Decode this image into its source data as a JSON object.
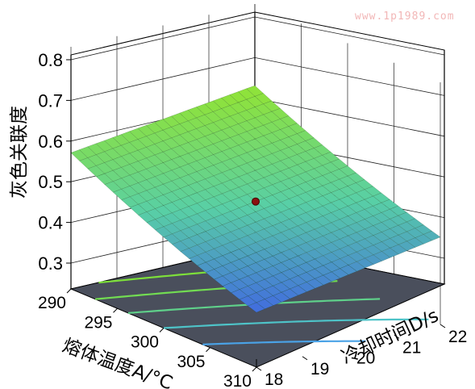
{
  "watermark": "www.1p1989.com",
  "chart_data": {
    "type": "surface3d",
    "zlabel": "灰色关联度",
    "xlabel": "熔体温度A/°C",
    "ylabel": "冷却时间D/s",
    "z_ticks": [
      "0.3",
      "0.4",
      "0.5",
      "0.6",
      "0.7",
      "0.8"
    ],
    "a_ticks": [
      "290",
      "295",
      "300",
      "305",
      "310"
    ],
    "d_ticks": [
      "18",
      "19",
      "20",
      "21",
      "22"
    ],
    "zlim": [
      0.3,
      0.8
    ],
    "alim": [
      290,
      310
    ],
    "dlim": [
      18,
      22
    ],
    "surface_corners": {
      "A290_D18": 0.56,
      "A290_D22": 0.62,
      "A310_D18": 0.36,
      "A310_D22": 0.44
    },
    "center_point": {
      "A": 300,
      "D": 20,
      "value": 0.49
    },
    "contour_levels": [
      {
        "value": 0.58,
        "color": "#7ddf3a"
      },
      {
        "value": 0.54,
        "color": "#72dc52"
      },
      {
        "value": 0.5,
        "color": "#5fd08a"
      },
      {
        "value": 0.46,
        "color": "#4ec3c8"
      },
      {
        "value": 0.42,
        "color": "#4aa2e6"
      }
    ],
    "colors": {
      "high": "#8ee23c",
      "mid": "#58cfa6",
      "low": "#3f62e4",
      "floor": "#4a4f5c"
    },
    "grid": true
  }
}
